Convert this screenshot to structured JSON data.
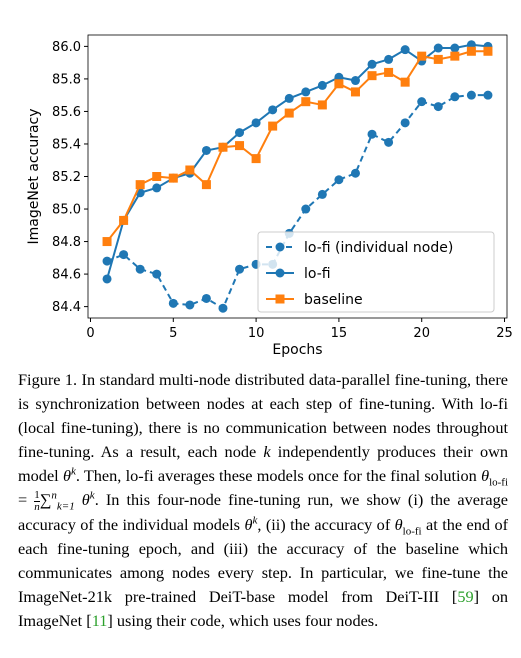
{
  "chart_data": {
    "type": "line",
    "xlabel": "Epochs",
    "ylabel": "ImageNet accuracy",
    "x": [
      1,
      2,
      3,
      4,
      5,
      6,
      7,
      8,
      9,
      10,
      11,
      12,
      13,
      14,
      15,
      16,
      17,
      18,
      19,
      20,
      21,
      22,
      23,
      24
    ],
    "xlim": [
      -0.15,
      25.15
    ],
    "xticks": [
      0,
      5,
      10,
      15,
      20,
      25
    ],
    "ylim": [
      84.33,
      86.07
    ],
    "yticks": [
      84.4,
      84.6,
      84.8,
      {
        "value": 85,
        "label": "85.0"
      },
      85.2,
      85.4,
      85.6,
      85.8,
      {
        "value": 86,
        "label": "86.0"
      }
    ],
    "legend": "lower right",
    "series": [
      {
        "name": "lo-fi (individual node)",
        "color": "#1f77b4",
        "marker": "circle",
        "dashed": true,
        "values": [
          84.68,
          84.72,
          84.63,
          84.6,
          84.42,
          84.41,
          84.45,
          84.39,
          84.63,
          84.66,
          84.66,
          84.85,
          85.0,
          85.09,
          85.18,
          85.22,
          85.46,
          85.41,
          85.53,
          85.66,
          85.63,
          85.69,
          85.7,
          85.7
        ]
      },
      {
        "name": "lo-fi",
        "color": "#1f77b4",
        "marker": "circle",
        "dashed": false,
        "values": [
          84.57,
          84.93,
          85.1,
          85.13,
          85.19,
          85.22,
          85.36,
          85.38,
          85.47,
          85.53,
          85.61,
          85.68,
          85.72,
          85.76,
          85.81,
          85.79,
          85.89,
          85.92,
          85.98,
          85.91,
          85.99,
          85.99,
          86.01,
          86.0
        ]
      },
      {
        "name": "baseline",
        "color": "#ff7f0e",
        "marker": "square",
        "dashed": false,
        "values": [
          84.8,
          84.93,
          85.15,
          85.2,
          85.19,
          85.24,
          85.15,
          85.38,
          85.39,
          85.31,
          85.51,
          85.59,
          85.66,
          85.64,
          85.77,
          85.72,
          85.82,
          85.84,
          85.78,
          85.94,
          85.92,
          85.94,
          85.97,
          85.97
        ]
      }
    ]
  },
  "caption": {
    "parts": [
      "Figure 1.",
      " In standard multi-node distributed data-parallel fine-tuning, there is synchronization between nodes at each step of fine-tuning. With lo-fi (local fine-tuning), there is no communication between nodes throughout fine-tuning. As a result, each node ",
      "k",
      " independently produces their own model ",
      "θ",
      "k",
      ". Then, lo-fi averages these models once for the final solution ",
      "θ",
      "lo-fi",
      " = ",
      "1",
      "n",
      "∑",
      "n",
      "k=1",
      "θ",
      "k",
      ". In this four-node fine-tuning run, we show (i) the average accuracy of the individual models ",
      "θ",
      "k",
      ", (ii) the accuracy of ",
      "θ",
      "lo-fi",
      " at the end of each fine-tuning epoch, and (iii) the accuracy of the baseline which communicates among nodes every step. In particular, we fine-tune the ImageNet-21k pre-trained DeiT-base model from DeiT-III [",
      "59",
      "] on ImageNet [",
      "11",
      "] using their code, which uses four nodes."
    ]
  }
}
